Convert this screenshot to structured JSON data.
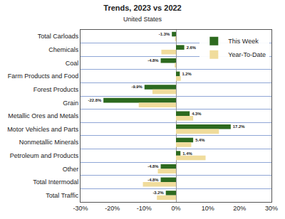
{
  "chart_data": {
    "type": "bar",
    "title": "Trends, 2023 vs 2022",
    "subtitle": "United States",
    "orientation": "horizontal",
    "categories": [
      "Total Carloads",
      "Chemicals",
      "Coal",
      "Farm Products and Food",
      "Forest Products",
      "Grain",
      "Metallic Ores and Metals",
      "Motor Vehicles and Parts",
      "Nonmetallic Minerals",
      "Petroleum and Products",
      "Other",
      "Total Intermodal",
      "Total Traffic"
    ],
    "series": [
      {
        "name": "This Week",
        "color": "#2d6a1f",
        "values": [
          -1.3,
          2.6,
          -4.8,
          1.2,
          -9.9,
          -22.8,
          4.3,
          17.2,
          5.4,
          1.4,
          -4.8,
          -4.8,
          -3.2
        ],
        "value_labels": [
          "-1.3%",
          "2.6%",
          "-4.8%",
          "1.2%",
          "-9.9%",
          "-22.8%",
          "4.3%",
          "17.2%",
          "5.4%",
          "1.4%",
          "-4.8%",
          "-4.8%",
          "-3.2%"
        ],
        "data_labels": true
      },
      {
        "name": "Year-To-Date",
        "color": "#f0dc9c",
        "values": [
          -0.3,
          -4.6,
          -0.4,
          1.5,
          -7.4,
          -11.7,
          5.4,
          13.5,
          4.8,
          9.3,
          -5.7,
          -10.4,
          -6.0
        ]
      }
    ],
    "xlim": [
      -30,
      30
    ],
    "xticks": [
      {
        "value": -30,
        "label": "-30%"
      },
      {
        "value": -20,
        "label": "-20%"
      },
      {
        "value": -10,
        "label": "-10%"
      },
      {
        "value": 0,
        "label": "0%"
      },
      {
        "value": 10,
        "label": "10%"
      },
      {
        "value": 20,
        "label": "20%"
      },
      {
        "value": 30,
        "label": "30%"
      }
    ],
    "grid": true,
    "legend": "top right"
  }
}
